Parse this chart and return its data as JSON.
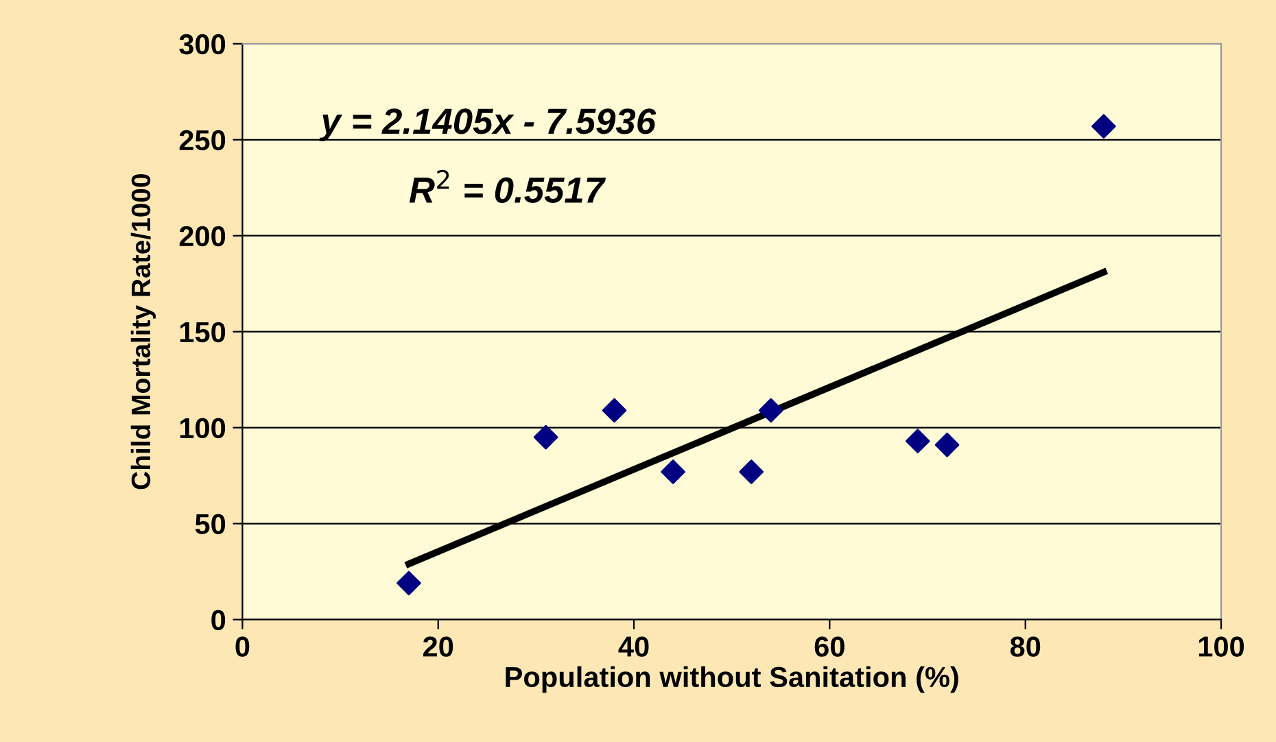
{
  "chart_data": {
    "type": "scatter",
    "xlabel": "Population without Sanitation (%)",
    "ylabel": "Child Mortality Rate/1000",
    "series": [
      {
        "color": "#000080",
        "marker": "diamond",
        "x": [
          17,
          31,
          38,
          44,
          52,
          54,
          69,
          72,
          88
        ],
        "values": [
          19,
          95,
          109,
          77,
          77,
          109,
          93,
          91,
          257
        ]
      },
      {
        "type": "line",
        "color": "#000000",
        "marker": "none",
        "line_style": "solid",
        "x": [
          17,
          88
        ],
        "values": [
          29,
          181
        ]
      }
    ],
    "annotations": [
      "y = 2.1405x - 7.5936",
      "R$^{2}$ = 0.5517"
    ],
    "xlim": [
      0,
      100
    ],
    "xticks": [
      0,
      20,
      40,
      60,
      80,
      100
    ],
    "ylim": [
      0,
      300
    ],
    "yticks": [
      0,
      50,
      100,
      150,
      200,
      250,
      300
    ],
    "grid": "y",
    "legend": false
  }
}
